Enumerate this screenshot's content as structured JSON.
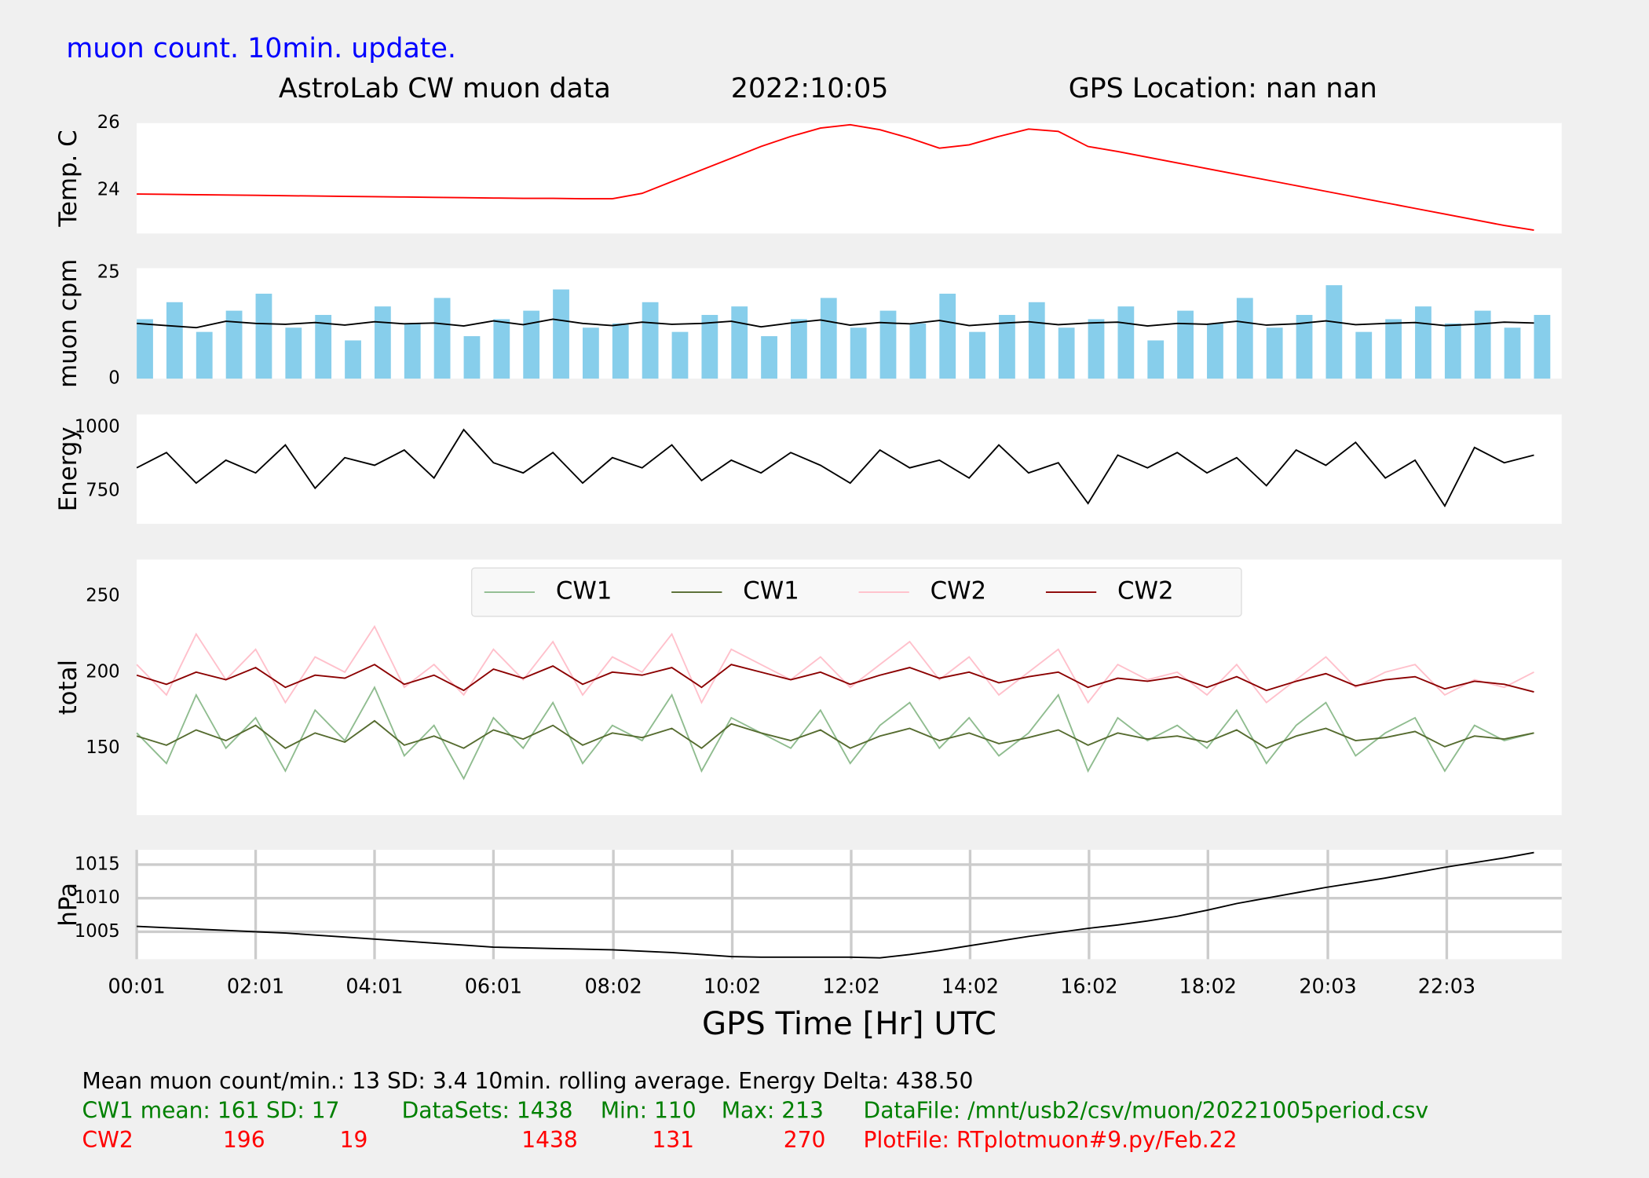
{
  "header": {
    "note": "muon count.  10min. update.",
    "title": "AstroLab CW muon data",
    "date": "2022:10:05",
    "location": "GPS Location: nan   nan"
  },
  "chart_data": [
    {
      "type": "line",
      "ylabel": "Temp. C",
      "xlim": [
        1,
        1439
      ],
      "ylim": [
        22.7,
        26
      ],
      "yticks": [
        24,
        26
      ],
      "x": [
        1,
        31,
        61,
        91,
        121,
        151,
        181,
        211,
        241,
        271,
        301,
        331,
        361,
        391,
        421,
        451,
        481,
        511,
        541,
        571,
        601,
        631,
        661,
        691,
        721,
        751,
        781,
        811,
        841,
        871,
        901,
        931,
        961,
        991,
        1021,
        1051,
        1081,
        1111,
        1141,
        1171,
        1201,
        1231,
        1261,
        1291,
        1321,
        1351,
        1381,
        1411
      ],
      "series": [
        {
          "color": "#ff0000",
          "style": "line",
          "values": [
            23.88,
            23.87,
            23.86,
            23.85,
            23.84,
            23.83,
            23.82,
            23.81,
            23.8,
            23.79,
            23.78,
            23.77,
            23.76,
            23.75,
            23.75,
            23.74,
            23.74,
            23.9,
            24.25,
            24.6,
            24.95,
            25.3,
            25.6,
            25.85,
            25.95,
            25.8,
            25.55,
            25.25,
            25.35,
            25.6,
            25.82,
            25.75,
            25.3,
            25.15,
            24.98,
            24.81,
            24.64,
            24.47,
            24.3,
            24.13,
            23.96,
            23.79,
            23.62,
            23.45,
            23.28,
            23.11,
            22.94,
            22.8
          ]
        }
      ]
    },
    {
      "type": "bar",
      "ylabel": "muon cpm",
      "xlim": [
        1,
        1439
      ],
      "ylim": [
        0,
        26
      ],
      "yticks": [
        0,
        25
      ],
      "x": [
        1,
        31,
        61,
        91,
        121,
        151,
        181,
        211,
        241,
        271,
        301,
        331,
        361,
        391,
        421,
        451,
        481,
        511,
        541,
        571,
        601,
        631,
        661,
        691,
        721,
        751,
        781,
        811,
        841,
        871,
        901,
        931,
        961,
        991,
        1021,
        1051,
        1081,
        1111,
        1141,
        1171,
        1201,
        1231,
        1261,
        1291,
        1321,
        1351,
        1381,
        1411
      ],
      "series": [
        {
          "color": "#87ceeb",
          "style": "bar",
          "values": [
            14,
            18,
            11,
            16,
            20,
            12,
            15,
            9,
            17,
            13,
            19,
            10,
            14,
            16,
            21,
            12,
            13,
            18,
            11,
            15,
            17,
            10,
            14,
            19,
            12,
            16,
            13,
            20,
            11,
            15,
            18,
            12,
            14,
            17,
            9,
            16,
            13,
            19,
            12,
            15,
            22,
            11,
            14,
            17,
            13,
            16,
            12,
            15
          ]
        },
        {
          "color": "#000000",
          "style": "line",
          "values": [
            13,
            12.5,
            12,
            13.5,
            13,
            12.8,
            13.2,
            12.6,
            13.4,
            12.9,
            13.1,
            12.4,
            13.6,
            12.7,
            14,
            13,
            12.5,
            13.3,
            12.8,
            13,
            13.5,
            12.2,
            13.1,
            13.8,
            12.6,
            13.2,
            12.9,
            13.7,
            12.5,
            13,
            13.4,
            12.7,
            13.1,
            13.3,
            12.4,
            13,
            12.8,
            13.5,
            12.6,
            12.9,
            13.6,
            12.7,
            13,
            13.2,
            12.5,
            12.8,
            13.3,
            13.1
          ]
        }
      ]
    },
    {
      "type": "line",
      "ylabel": "Energy",
      "xlim": [
        1,
        1439
      ],
      "ylim": [
        620,
        1050
      ],
      "yticks": [
        750,
        1000
      ],
      "x": [
        1,
        31,
        61,
        91,
        121,
        151,
        181,
        211,
        241,
        271,
        301,
        331,
        361,
        391,
        421,
        451,
        481,
        511,
        541,
        571,
        601,
        631,
        661,
        691,
        721,
        751,
        781,
        811,
        841,
        871,
        901,
        931,
        961,
        991,
        1021,
        1051,
        1081,
        1111,
        1141,
        1171,
        1201,
        1231,
        1261,
        1291,
        1321,
        1351,
        1381,
        1411
      ],
      "series": [
        {
          "color": "#000000",
          "style": "line",
          "values": [
            840,
            900,
            780,
            870,
            820,
            930,
            760,
            880,
            850,
            910,
            800,
            990,
            860,
            820,
            900,
            780,
            880,
            840,
            930,
            790,
            870,
            820,
            900,
            850,
            780,
            910,
            840,
            870,
            800,
            930,
            820,
            860,
            700,
            890,
            840,
            900,
            820,
            880,
            770,
            910,
            850,
            940,
            800,
            870,
            690,
            920,
            860,
            890
          ]
        }
      ]
    },
    {
      "type": "line",
      "ylabel": "total",
      "legend": "upper center",
      "xlim": [
        1,
        1439
      ],
      "ylim": [
        106,
        274
      ],
      "yticks": [
        150,
        200,
        250
      ],
      "x": [
        1,
        31,
        61,
        91,
        121,
        151,
        181,
        211,
        241,
        271,
        301,
        331,
        361,
        391,
        421,
        451,
        481,
        511,
        541,
        571,
        601,
        631,
        661,
        691,
        721,
        751,
        781,
        811,
        841,
        871,
        901,
        931,
        961,
        991,
        1021,
        1051,
        1081,
        1111,
        1141,
        1171,
        1201,
        1231,
        1261,
        1291,
        1321,
        1351,
        1381,
        1411
      ],
      "series": [
        {
          "name": "CW1",
          "color": "#8fbc8f",
          "style": "line",
          "values": [
            160,
            140,
            185,
            150,
            170,
            135,
            175,
            155,
            190,
            145,
            165,
            130,
            170,
            150,
            180,
            140,
            165,
            155,
            185,
            135,
            170,
            160,
            150,
            175,
            140,
            165,
            180,
            150,
            170,
            145,
            160,
            185,
            135,
            170,
            155,
            165,
            150,
            175,
            140,
            165,
            180,
            145,
            160,
            170,
            135,
            165,
            155,
            160
          ]
        },
        {
          "name": "CW1",
          "color": "#556b2f",
          "style": "line",
          "values": [
            158,
            152,
            162,
            155,
            165,
            150,
            160,
            154,
            168,
            152,
            158,
            150,
            162,
            156,
            165,
            152,
            160,
            157,
            163,
            150,
            166,
            160,
            155,
            162,
            150,
            158,
            163,
            155,
            160,
            153,
            157,
            162,
            152,
            160,
            156,
            158,
            154,
            162,
            150,
            158,
            163,
            155,
            157,
            161,
            151,
            158,
            156,
            160
          ]
        },
        {
          "name": "CW2",
          "color": "#ffc0cb",
          "style": "line",
          "values": [
            205,
            185,
            225,
            195,
            215,
            180,
            210,
            200,
            230,
            190,
            205,
            185,
            215,
            195,
            220,
            185,
            210,
            200,
            225,
            180,
            215,
            205,
            195,
            210,
            190,
            205,
            220,
            195,
            210,
            185,
            200,
            215,
            180,
            205,
            195,
            200,
            185,
            205,
            180,
            195,
            210,
            190,
            200,
            205,
            185,
            195,
            190,
            200
          ]
        },
        {
          "name": "CW2",
          "color": "#8b0000",
          "style": "line",
          "values": [
            198,
            192,
            200,
            195,
            203,
            190,
            198,
            196,
            205,
            192,
            198,
            188,
            202,
            196,
            204,
            192,
            200,
            198,
            203,
            190,
            205,
            200,
            195,
            200,
            192,
            198,
            203,
            196,
            200,
            193,
            197,
            200,
            190,
            196,
            194,
            197,
            190,
            197,
            188,
            194,
            199,
            191,
            195,
            197,
            189,
            194,
            192,
            187
          ]
        }
      ]
    },
    {
      "type": "line",
      "ylabel": "hPa",
      "xlabel": "GPS Time  [Hr] UTC",
      "grid": true,
      "xlim": [
        1,
        1439
      ],
      "ylim": [
        1000.9,
        1017.2
      ],
      "yticks": [
        1005,
        1010,
        1015
      ],
      "xticks": [
        {
          "value": 1,
          "label": "00:01"
        },
        {
          "value": 121,
          "label": "02:01"
        },
        {
          "value": 241,
          "label": "04:01"
        },
        {
          "value": 361,
          "label": "06:01"
        },
        {
          "value": 482,
          "label": "08:02"
        },
        {
          "value": 602,
          "label": "10:02"
        },
        {
          "value": 722,
          "label": "12:02"
        },
        {
          "value": 842,
          "label": "14:02"
        },
        {
          "value": 962,
          "label": "16:02"
        },
        {
          "value": 1082,
          "label": "18:02"
        },
        {
          "value": 1203,
          "label": "20:03"
        },
        {
          "value": 1323,
          "label": "22:03"
        }
      ],
      "x": [
        1,
        31,
        61,
        91,
        121,
        151,
        181,
        211,
        241,
        271,
        301,
        331,
        361,
        391,
        421,
        451,
        481,
        511,
        541,
        571,
        601,
        631,
        661,
        691,
        721,
        751,
        781,
        811,
        841,
        871,
        901,
        931,
        961,
        991,
        1021,
        1051,
        1081,
        1111,
        1141,
        1171,
        1201,
        1231,
        1261,
        1291,
        1321,
        1351,
        1381,
        1411
      ],
      "series": [
        {
          "color": "#000000",
          "style": "line",
          "values": [
            1005.8,
            1005.6,
            1005.4,
            1005.2,
            1005.0,
            1004.8,
            1004.5,
            1004.2,
            1003.9,
            1003.6,
            1003.3,
            1003.0,
            1002.7,
            1002.6,
            1002.5,
            1002.4,
            1002.3,
            1002.1,
            1001.9,
            1001.6,
            1001.3,
            1001.2,
            1001.2,
            1001.2,
            1001.2,
            1001.1,
            1001.6,
            1002.2,
            1002.9,
            1003.6,
            1004.3,
            1004.9,
            1005.5,
            1006.0,
            1006.6,
            1007.3,
            1008.2,
            1009.2,
            1010.0,
            1010.8,
            1011.6,
            1012.3,
            1013.0,
            1013.8,
            1014.6,
            1015.3,
            1016.0,
            1016.8
          ]
        }
      ]
    }
  ],
  "footer": {
    "summary": "Mean muon count/min.: 13  SD: 3.4   10min. rolling average.    Energy Delta:  438.50",
    "cw1": [
      "CW1 mean: 161",
      "SD: 17",
      "DataSets: 1438",
      "Min: 110",
      "Max: 213",
      "DataFile: /mnt/usb2/csv/muon/20221005period.csv"
    ],
    "cw2": [
      "CW2",
      "196",
      "19",
      "1438",
      "131",
      "270",
      "PlotFile: RTplotmuon#9.py/Feb.22"
    ]
  }
}
